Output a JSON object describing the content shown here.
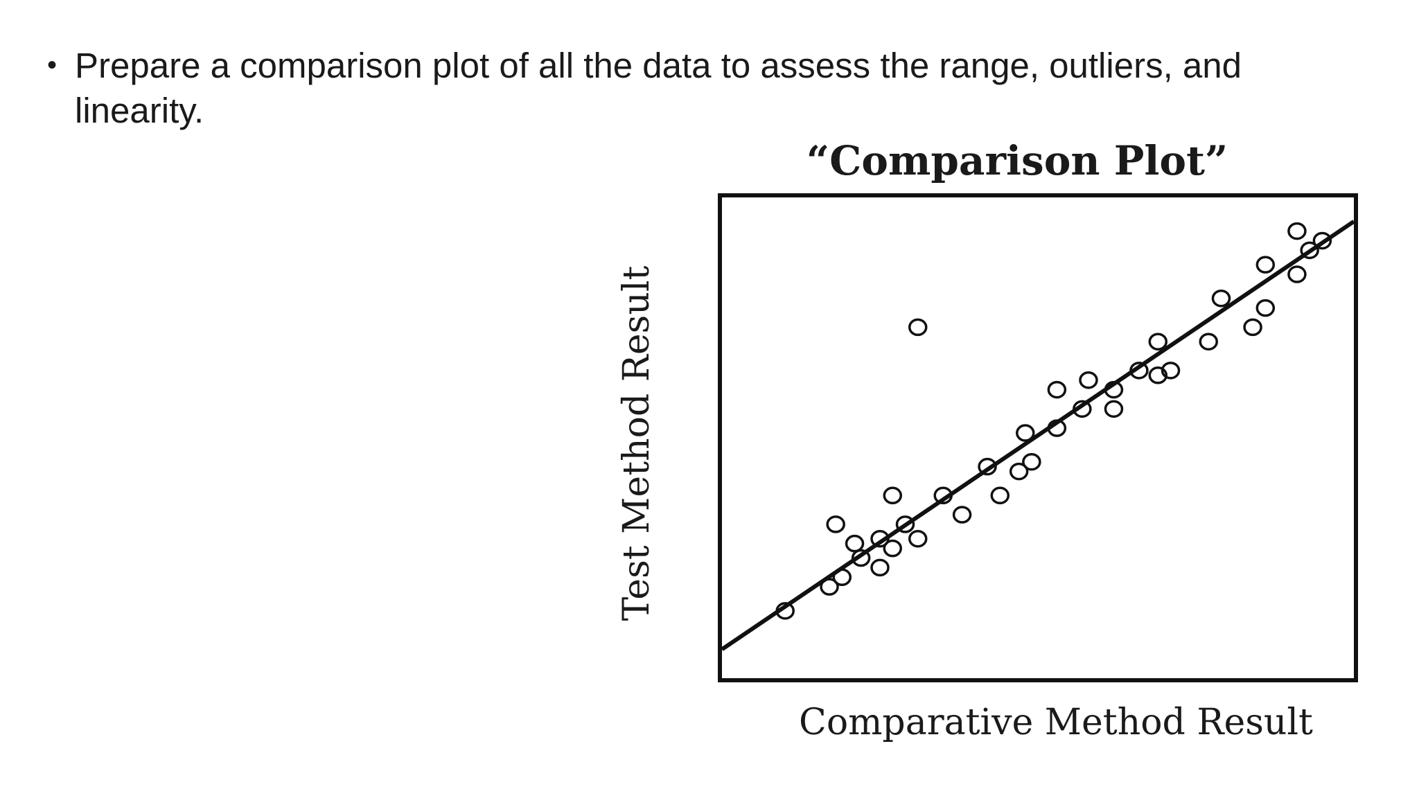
{
  "bullet": {
    "symbol": "•",
    "text": "Prepare a comparison plot of all the data to assess the range, outliers, and linearity."
  },
  "chart_data": {
    "type": "scatter",
    "title": "“Comparison Plot”",
    "xlabel": "Comparative Method Result",
    "ylabel": "Test Method Result",
    "xlim": [
      0,
      100
    ],
    "ylim": [
      0,
      100
    ],
    "grid": false,
    "legend": "none",
    "ticks": "none",
    "marker": "open-circle",
    "colors": {
      "ink": "#111111",
      "text": "#1a1a1a",
      "background": "#ffffff"
    },
    "points": [
      {
        "x": 10,
        "y": 14
      },
      {
        "x": 17,
        "y": 19
      },
      {
        "x": 19,
        "y": 21
      },
      {
        "x": 18,
        "y": 32
      },
      {
        "x": 21,
        "y": 28
      },
      {
        "x": 22,
        "y": 25
      },
      {
        "x": 25,
        "y": 23
      },
      {
        "x": 25,
        "y": 29
      },
      {
        "x": 27,
        "y": 27
      },
      {
        "x": 27,
        "y": 38
      },
      {
        "x": 29,
        "y": 32
      },
      {
        "x": 31,
        "y": 29
      },
      {
        "x": 31,
        "y": 73
      },
      {
        "x": 35,
        "y": 38
      },
      {
        "x": 38,
        "y": 34
      },
      {
        "x": 42,
        "y": 44
      },
      {
        "x": 44,
        "y": 38
      },
      {
        "x": 47,
        "y": 43
      },
      {
        "x": 48,
        "y": 51
      },
      {
        "x": 49,
        "y": 45
      },
      {
        "x": 53,
        "y": 52
      },
      {
        "x": 53,
        "y": 60
      },
      {
        "x": 57,
        "y": 56
      },
      {
        "x": 58,
        "y": 62
      },
      {
        "x": 62,
        "y": 56
      },
      {
        "x": 62,
        "y": 60
      },
      {
        "x": 66,
        "y": 64
      },
      {
        "x": 69,
        "y": 63
      },
      {
        "x": 69,
        "y": 70
      },
      {
        "x": 71,
        "y": 64
      },
      {
        "x": 77,
        "y": 70
      },
      {
        "x": 79,
        "y": 79
      },
      {
        "x": 84,
        "y": 73
      },
      {
        "x": 86,
        "y": 77
      },
      {
        "x": 86,
        "y": 86
      },
      {
        "x": 91,
        "y": 84
      },
      {
        "x": 91,
        "y": 93
      },
      {
        "x": 93,
        "y": 89
      },
      {
        "x": 95,
        "y": 91
      }
    ],
    "fit_line": {
      "x1": 0,
      "y1": 6,
      "x2": 100,
      "y2": 95
    }
  }
}
